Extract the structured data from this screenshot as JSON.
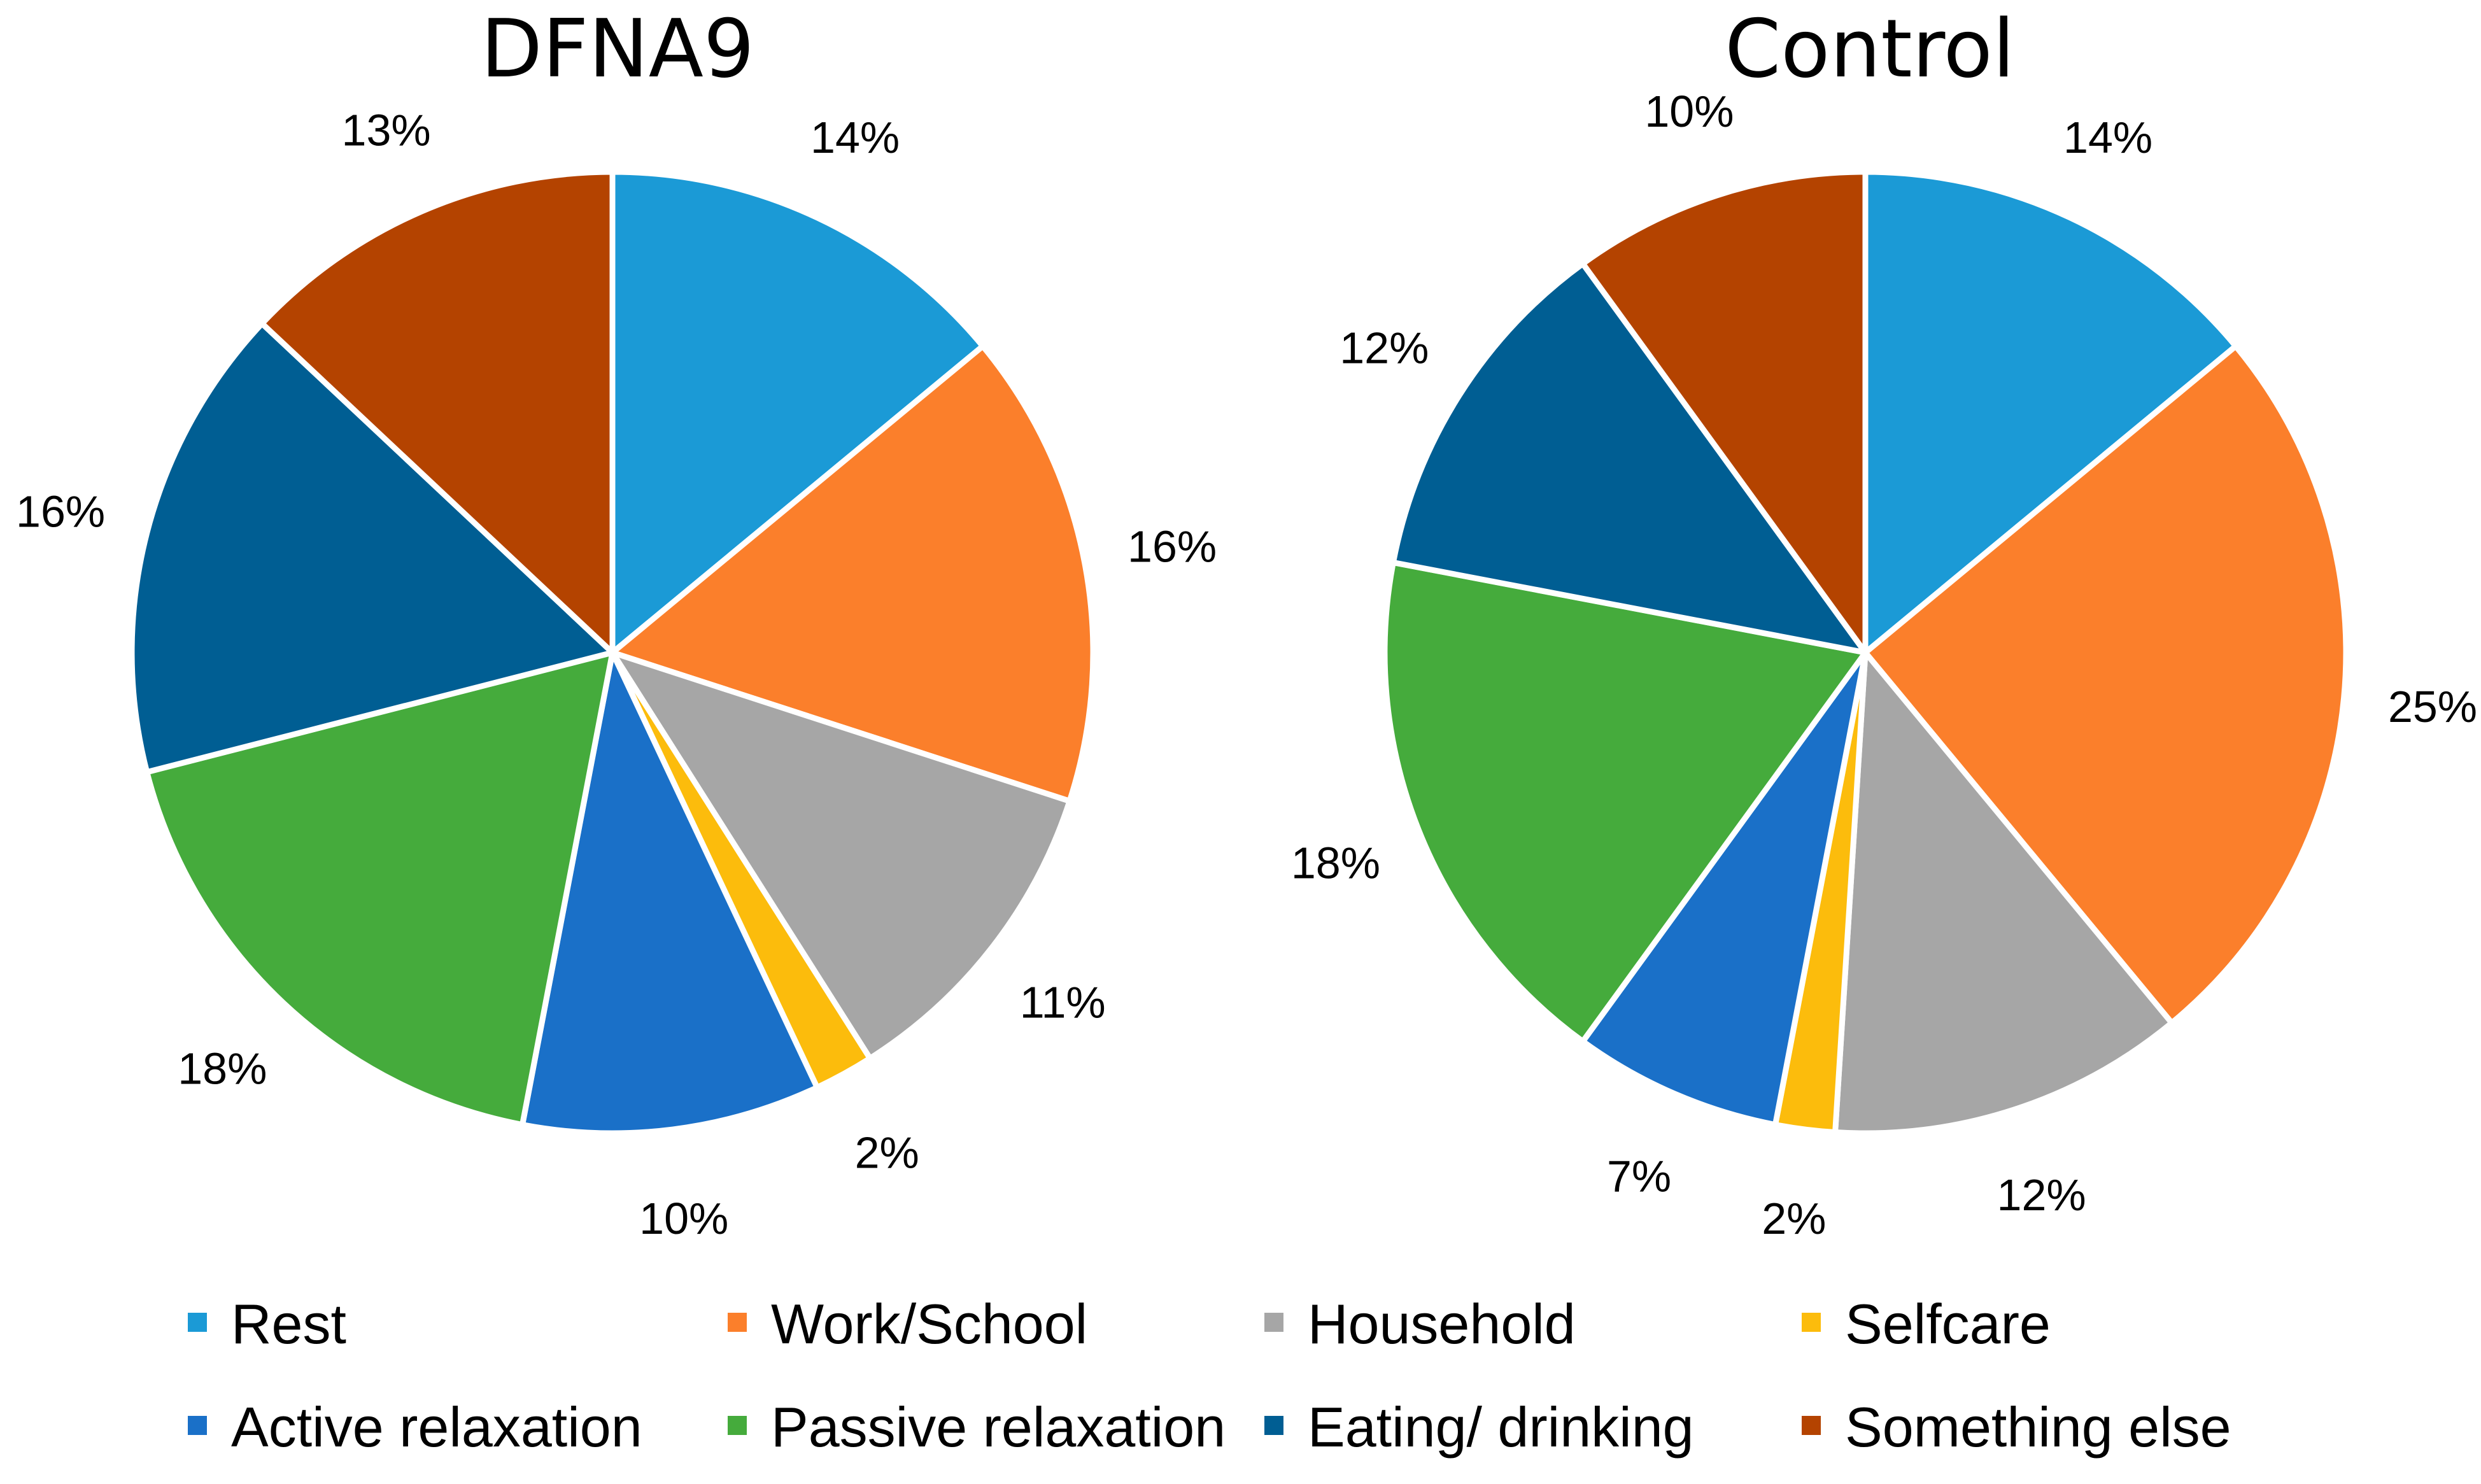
{
  "categories": [
    {
      "name": "Rest",
      "color": "#1b9ad6"
    },
    {
      "name": "Work/School",
      "color": "#fb7f2b"
    },
    {
      "name": "Household",
      "color": "#a6a6a6"
    },
    {
      "name": "Selfcare",
      "color": "#fcbc0c"
    },
    {
      "name": "Active relaxation",
      "color": "#1a70c8"
    },
    {
      "name": "Passive relaxation",
      "color": "#45ab3c"
    },
    {
      "name": "Eating/ drinking",
      "color": "#005e93"
    },
    {
      "name": "Something else",
      "color": "#b44300"
    }
  ],
  "chart_data": [
    {
      "type": "pie",
      "title": "DFNA9",
      "categories": [
        "Rest",
        "Work/School",
        "Household",
        "Selfcare",
        "Active relaxation",
        "Passive relaxation",
        "Eating/ drinking",
        "Something else"
      ],
      "values": [
        14,
        16,
        11,
        2,
        10,
        18,
        16,
        13
      ],
      "labels": [
        "14%",
        "16%",
        "11%",
        "2%",
        "10%",
        "18%",
        "16%",
        "13%"
      ]
    },
    {
      "type": "pie",
      "title": "Control",
      "categories": [
        "Rest",
        "Work/School",
        "Household",
        "Selfcare",
        "Active relaxation",
        "Passive relaxation",
        "Eating/ drinking",
        "Something else"
      ],
      "values": [
        14,
        25,
        12,
        2,
        7,
        18,
        12,
        10
      ],
      "labels": [
        "14%",
        "25%",
        "12%",
        "2%",
        "7%",
        "18%",
        "12%",
        "10%"
      ]
    }
  ]
}
